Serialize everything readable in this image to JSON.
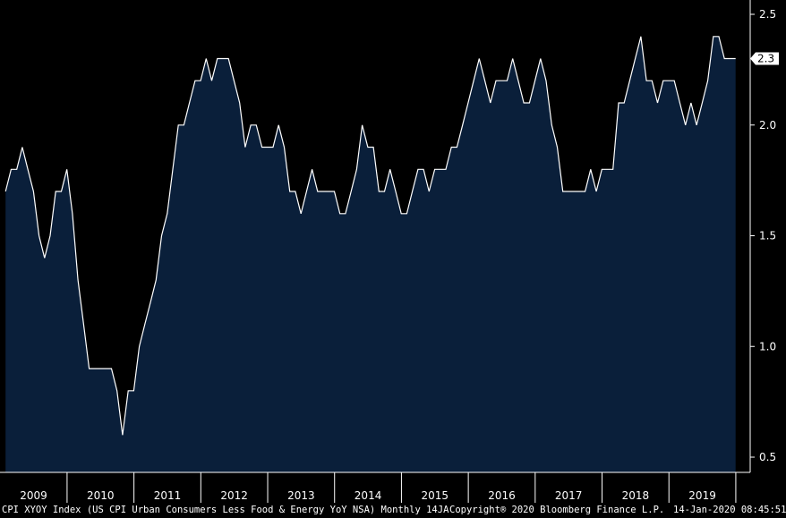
{
  "chart_data": {
    "type": "area",
    "series": [
      {
        "x": [
          "2009-01",
          "2009-02",
          "2009-03",
          "2009-04",
          "2009-05",
          "2009-06",
          "2009-07",
          "2009-08",
          "2009-09",
          "2009-10",
          "2009-11",
          "2009-12",
          "2010-01",
          "2010-02",
          "2010-03",
          "2010-04",
          "2010-05",
          "2010-06",
          "2010-07",
          "2010-08",
          "2010-09",
          "2010-10",
          "2010-11",
          "2010-12",
          "2011-01",
          "2011-02",
          "2011-03",
          "2011-04",
          "2011-05",
          "2011-06",
          "2011-07",
          "2011-08",
          "2011-09",
          "2011-10",
          "2011-11",
          "2011-12",
          "2012-01",
          "2012-02",
          "2012-03",
          "2012-04",
          "2012-05",
          "2012-06",
          "2012-07",
          "2012-08",
          "2012-09",
          "2012-10",
          "2012-11",
          "2012-12",
          "2013-01",
          "2013-02",
          "2013-03",
          "2013-04",
          "2013-05",
          "2013-06",
          "2013-07",
          "2013-08",
          "2013-09",
          "2013-10",
          "2013-11",
          "2013-12",
          "2014-01",
          "2014-02",
          "2014-03",
          "2014-04",
          "2014-05",
          "2014-06",
          "2014-07",
          "2014-08",
          "2014-09",
          "2014-10",
          "2014-11",
          "2014-12",
          "2015-01",
          "2015-02",
          "2015-03",
          "2015-04",
          "2015-05",
          "2015-06",
          "2015-07",
          "2015-08",
          "2015-09",
          "2015-10",
          "2015-11",
          "2015-12",
          "2016-01",
          "2016-02",
          "2016-03",
          "2016-04",
          "2016-05",
          "2016-06",
          "2016-07",
          "2016-08",
          "2016-09",
          "2016-10",
          "2016-11",
          "2016-12",
          "2017-01",
          "2017-02",
          "2017-03",
          "2017-04",
          "2017-05",
          "2017-06",
          "2017-07",
          "2017-08",
          "2017-09",
          "2017-10",
          "2017-11",
          "2017-12",
          "2018-01",
          "2018-02",
          "2018-03",
          "2018-04",
          "2018-05",
          "2018-06",
          "2018-07",
          "2018-08",
          "2018-09",
          "2018-10",
          "2018-11",
          "2018-12",
          "2019-01",
          "2019-02",
          "2019-03",
          "2019-04",
          "2019-05",
          "2019-06",
          "2019-07",
          "2019-08",
          "2019-09",
          "2019-10",
          "2019-11",
          "2019-12"
        ],
        "y": [
          1.7,
          1.8,
          1.8,
          1.9,
          1.8,
          1.7,
          1.5,
          1.4,
          1.5,
          1.7,
          1.7,
          1.8,
          1.6,
          1.3,
          1.1,
          0.9,
          0.9,
          0.9,
          0.9,
          0.9,
          0.8,
          0.6,
          0.8,
          0.8,
          1.0,
          1.1,
          1.2,
          1.3,
          1.5,
          1.6,
          1.8,
          2.0,
          2.0,
          2.1,
          2.2,
          2.2,
          2.3,
          2.2,
          2.3,
          2.3,
          2.3,
          2.2,
          2.1,
          1.9,
          2.0,
          2.0,
          1.9,
          1.9,
          1.9,
          2.0,
          1.9,
          1.7,
          1.7,
          1.6,
          1.7,
          1.8,
          1.7,
          1.7,
          1.7,
          1.7,
          1.6,
          1.6,
          1.7,
          1.8,
          2.0,
          1.9,
          1.9,
          1.7,
          1.7,
          1.8,
          1.7,
          1.6,
          1.6,
          1.7,
          1.8,
          1.8,
          1.7,
          1.8,
          1.8,
          1.8,
          1.9,
          1.9,
          2.0,
          2.1,
          2.2,
          2.3,
          2.2,
          2.1,
          2.2,
          2.2,
          2.2,
          2.3,
          2.2,
          2.1,
          2.1,
          2.2,
          2.3,
          2.2,
          2.0,
          1.9,
          1.7,
          1.7,
          1.7,
          1.7,
          1.7,
          1.8,
          1.7,
          1.8,
          1.8,
          1.8,
          2.1,
          2.1,
          2.2,
          2.3,
          2.4,
          2.2,
          2.2,
          2.1,
          2.2,
          2.2,
          2.2,
          2.1,
          2.0,
          2.1,
          2.0,
          2.1,
          2.2,
          2.4,
          2.4,
          2.3,
          2.3,
          2.3
        ]
      }
    ],
    "xticks": [
      "2009",
      "2010",
      "2011",
      "2012",
      "2013",
      "2014",
      "2015",
      "2016",
      "2017",
      "2018",
      "2019"
    ],
    "yticks": [
      "2.5",
      "2.0",
      "1.5",
      "1.0",
      "0.5"
    ],
    "ylim": [
      0.5,
      2.5
    ],
    "last_value_label": "2.3",
    "grid": false,
    "colors": {
      "background": "#000000",
      "fill": "#0a1f3a",
      "line": "#ffffff",
      "axis": "#ffffff"
    }
  },
  "footer": {
    "security": "CPI XYOY Index (US CPI Urban Consumers Less Food & Energy YoY NSA)  Monthly 14JA",
    "copyright": "Copyright® 2020 Bloomberg Finance L.P.",
    "timestamp": "14-Jan-2020 08:45:51"
  }
}
